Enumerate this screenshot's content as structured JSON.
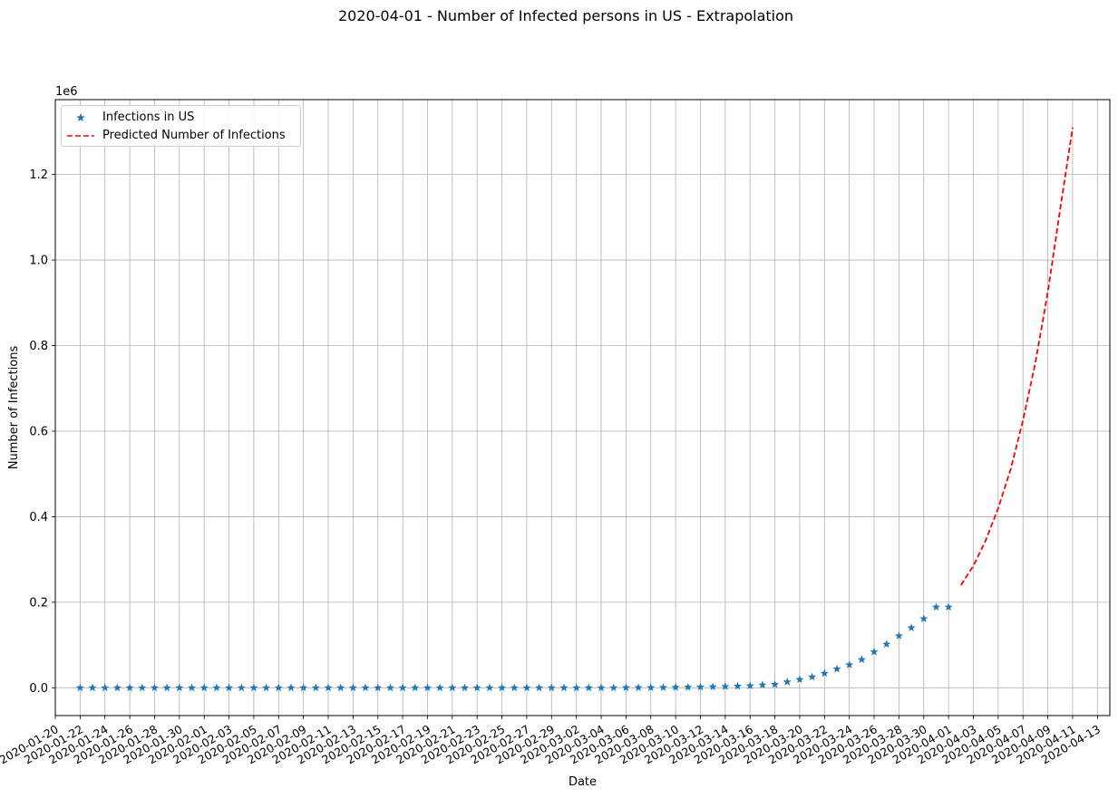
{
  "chart_data": {
    "type": "line",
    "title": "2020-04-01 - Number of Infected persons in US - Extrapolation",
    "xlabel": "Date",
    "ylabel": "Number of Infections",
    "y_offset_label": "1e6",
    "xlim": [
      "2020-01-20",
      "2020-04-14"
    ],
    "ylim": [
      -0.065,
      1.375
    ],
    "y_scale_note": "values in millions",
    "grid": true,
    "legend_position": "upper left",
    "x_tick_labels": [
      "2020-01-20",
      "2020-01-22",
      "2020-01-24",
      "2020-01-26",
      "2020-01-28",
      "2020-01-30",
      "2020-02-01",
      "2020-02-03",
      "2020-02-05",
      "2020-02-07",
      "2020-02-09",
      "2020-02-11",
      "2020-02-13",
      "2020-02-15",
      "2020-02-17",
      "2020-02-19",
      "2020-02-21",
      "2020-02-23",
      "2020-02-25",
      "2020-02-27",
      "2020-02-29",
      "2020-03-02",
      "2020-03-04",
      "2020-03-06",
      "2020-03-08",
      "2020-03-10",
      "2020-03-12",
      "2020-03-14",
      "2020-03-16",
      "2020-03-18",
      "2020-03-20",
      "2020-03-22",
      "2020-03-24",
      "2020-03-26",
      "2020-03-28",
      "2020-03-30",
      "2020-04-01",
      "2020-04-03",
      "2020-04-05",
      "2020-04-07",
      "2020-04-09",
      "2020-04-11",
      "2020-04-13"
    ],
    "y_tick_labels": [
      "0.0",
      "0.2",
      "0.4",
      "0.6",
      "0.8",
      "1.0",
      "1.2"
    ],
    "y_ticks": [
      0,
      0.2,
      0.4,
      0.6,
      0.8,
      1.0,
      1.2
    ],
    "series": [
      {
        "name": "Infections in US",
        "style": "star-markers",
        "color": "#1f77b4",
        "x": [
          "2020-01-22",
          "2020-01-23",
          "2020-01-24",
          "2020-01-25",
          "2020-01-26",
          "2020-01-27",
          "2020-01-28",
          "2020-01-29",
          "2020-01-30",
          "2020-01-31",
          "2020-02-01",
          "2020-02-02",
          "2020-02-03",
          "2020-02-04",
          "2020-02-05",
          "2020-02-06",
          "2020-02-07",
          "2020-02-08",
          "2020-02-09",
          "2020-02-10",
          "2020-02-11",
          "2020-02-12",
          "2020-02-13",
          "2020-02-14",
          "2020-02-15",
          "2020-02-16",
          "2020-02-17",
          "2020-02-18",
          "2020-02-19",
          "2020-02-20",
          "2020-02-21",
          "2020-02-22",
          "2020-02-23",
          "2020-02-24",
          "2020-02-25",
          "2020-02-26",
          "2020-02-27",
          "2020-02-28",
          "2020-02-29",
          "2020-03-01",
          "2020-03-02",
          "2020-03-03",
          "2020-03-04",
          "2020-03-05",
          "2020-03-06",
          "2020-03-07",
          "2020-03-08",
          "2020-03-09",
          "2020-03-10",
          "2020-03-11",
          "2020-03-12",
          "2020-03-13",
          "2020-03-14",
          "2020-03-15",
          "2020-03-16",
          "2020-03-17",
          "2020-03-18",
          "2020-03-19",
          "2020-03-20",
          "2020-03-21",
          "2020-03-22",
          "2020-03-23",
          "2020-03-24",
          "2020-03-25",
          "2020-03-26",
          "2020-03-27",
          "2020-03-28",
          "2020-03-29",
          "2020-03-30",
          "2020-03-31",
          "2020-04-01"
        ],
        "y": [
          0,
          0,
          0,
          0,
          0,
          0,
          0,
          0,
          0,
          0,
          0,
          0,
          0,
          0,
          0,
          0,
          0,
          0,
          0,
          0,
          0,
          0,
          0,
          0,
          0,
          0,
          0,
          0,
          0,
          0,
          0,
          0,
          0,
          0,
          0,
          0,
          0,
          0,
          0,
          0,
          0,
          0,
          0,
          0,
          0.0003,
          0.0004,
          0.0005,
          0.0006,
          0.001,
          0.0013,
          0.0017,
          0.0022,
          0.0029,
          0.0036,
          0.0047,
          0.0066,
          0.0078,
          0.0137,
          0.0191,
          0.0252,
          0.0337,
          0.0437,
          0.0536,
          0.0658,
          0.0839,
          0.1019,
          0.1214,
          0.1402,
          0.1614,
          0.1885,
          0.1885
        ]
      },
      {
        "name": "Predicted Number of Infections",
        "style": "dashed-line",
        "color": "#ff0000",
        "x": [
          "2020-04-02",
          "2020-04-03",
          "2020-04-04",
          "2020-04-05",
          "2020-04-06",
          "2020-04-07",
          "2020-04-08",
          "2020-04-09",
          "2020-04-10",
          "2020-04-11"
        ],
        "y": [
          0.24,
          0.285,
          0.345,
          0.42,
          0.51,
          0.625,
          0.76,
          0.925,
          1.12,
          1.31
        ]
      }
    ]
  }
}
